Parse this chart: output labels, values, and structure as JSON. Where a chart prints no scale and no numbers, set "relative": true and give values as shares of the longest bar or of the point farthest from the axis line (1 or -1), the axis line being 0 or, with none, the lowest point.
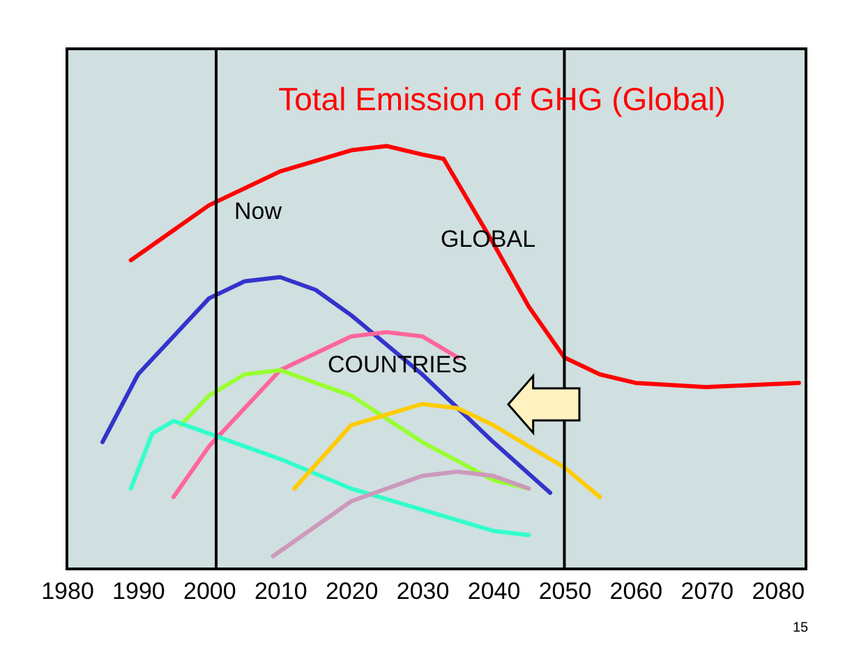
{
  "chart_data": {
    "type": "line",
    "title": "Total Emission of GHG (Global)",
    "relative": true,
    "grid": false,
    "marker": "none",
    "line_style": "solid",
    "xlim": [
      1980,
      2084
    ],
    "xticks": [
      1980,
      1990,
      2000,
      2010,
      2020,
      2030,
      2040,
      2050,
      2060,
      2070,
      2080
    ],
    "ref_lines": [
      {
        "axis": "x",
        "value": 2001,
        "color": "#000000"
      },
      {
        "axis": "x",
        "value": 2050,
        "color": "#000000"
      }
    ],
    "annotations": [
      "Now",
      "GLOBAL",
      "COUNTRIES",
      "15"
    ],
    "series": [
      {
        "color": "#ff0000",
        "x": [
          1989,
          2000,
          2010,
          2020,
          2025,
          2030,
          2033,
          2040,
          2045,
          2050,
          2055,
          2060,
          2070,
          2083
        ],
        "values": [
          0.73,
          0.86,
          0.94,
          0.99,
          1.0,
          0.98,
          0.97,
          0.77,
          0.62,
          0.5,
          0.46,
          0.44,
          0.43,
          0.44
        ]
      },
      {
        "color": "#3333cc",
        "x": [
          1985,
          1990,
          2000,
          2005,
          2010,
          2015,
          2020,
          2030,
          2040,
          2048
        ],
        "values": [
          0.3,
          0.46,
          0.64,
          0.68,
          0.69,
          0.66,
          0.6,
          0.46,
          0.3,
          0.18
        ]
      },
      {
        "color": "#ff6699",
        "x": [
          1995,
          2000,
          2010,
          2020,
          2025,
          2030,
          2035
        ],
        "values": [
          0.17,
          0.29,
          0.47,
          0.55,
          0.56,
          0.55,
          0.5
        ]
      },
      {
        "color": "#99ff33",
        "x": [
          1996,
          2000,
          2005,
          2010,
          2020,
          2030,
          2040,
          2045
        ],
        "values": [
          0.34,
          0.41,
          0.46,
          0.47,
          0.41,
          0.3,
          0.21,
          0.19
        ]
      },
      {
        "color": "#33ffcc",
        "x": [
          1989,
          1992,
          1995,
          2000,
          2010,
          2020,
          2030,
          2040,
          2045
        ],
        "values": [
          0.19,
          0.32,
          0.35,
          0.32,
          0.26,
          0.19,
          0.14,
          0.09,
          0.08
        ]
      },
      {
        "color": "#ffcc00",
        "x": [
          2012,
          2020,
          2030,
          2035,
          2040,
          2050,
          2055
        ],
        "values": [
          0.19,
          0.34,
          0.39,
          0.38,
          0.34,
          0.24,
          0.17
        ]
      },
      {
        "color": "#cc99bb",
        "x": [
          2009,
          2020,
          2030,
          2035,
          2040,
          2045
        ],
        "values": [
          0.03,
          0.16,
          0.22,
          0.23,
          0.22,
          0.19
        ]
      }
    ]
  }
}
